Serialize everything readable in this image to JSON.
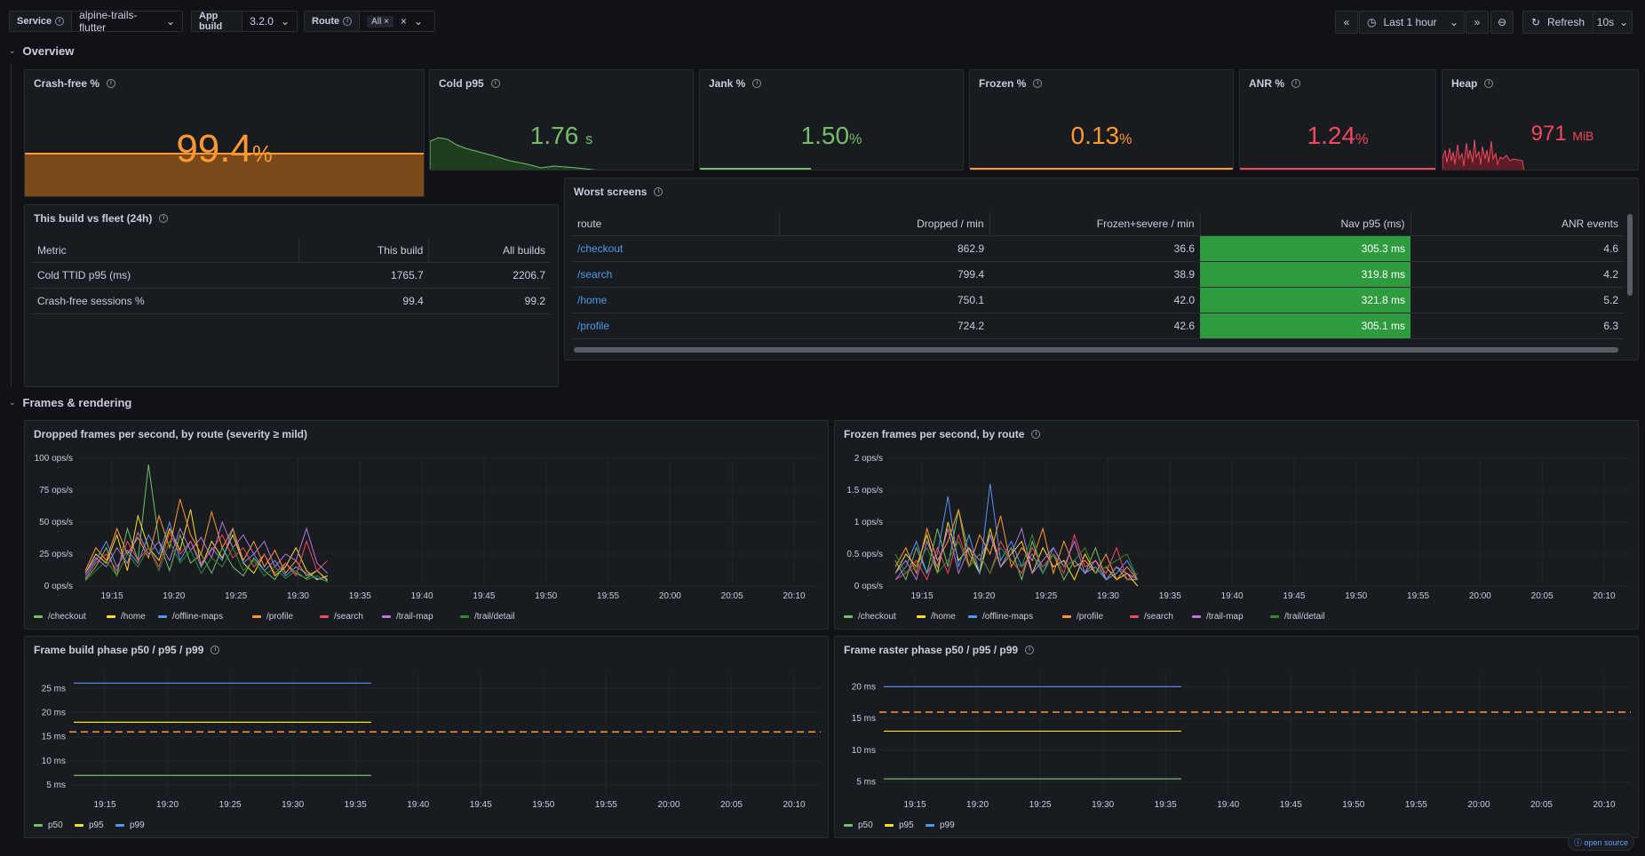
{
  "vars": {
    "service": {
      "label": "Service",
      "value": "alpine-trails-flutter"
    },
    "app_build": {
      "label": "App build",
      "value": "3.2.0"
    },
    "route": {
      "label": "Route",
      "value": "All"
    }
  },
  "timepicker": {
    "range": "Last 1 hour",
    "refresh": "Refresh",
    "interval": "10s"
  },
  "rows": {
    "overview": "Overview",
    "frames": "Frames & rendering"
  },
  "stats": [
    {
      "title": "Crash-free %",
      "value": "99.4",
      "unit": "%",
      "color": "#ff9830"
    },
    {
      "title": "Cold p95",
      "value": "1.76",
      "unit": "s",
      "color": "#73bf69"
    },
    {
      "title": "Jank %",
      "value": "1.50",
      "unit": "%",
      "color": "#73bf69"
    },
    {
      "title": "Frozen %",
      "value": "0.13",
      "unit": "%",
      "color": "#ff9830"
    },
    {
      "title": "ANR %",
      "value": "1.24",
      "unit": "%",
      "color": "#f2495c"
    },
    {
      "title": "Heap",
      "value": "971",
      "unit": "MiB",
      "color": "#f2495c"
    }
  ],
  "fleet": {
    "title": "This build vs fleet (24h)",
    "headers": [
      "Metric",
      "This build",
      "All builds"
    ],
    "rows": [
      [
        "Cold TTID p95 (ms)",
        "1765.7",
        "2206.7"
      ],
      [
        "Crash-free sessions %",
        "99.4",
        "99.2"
      ]
    ]
  },
  "worst": {
    "title": "Worst screens",
    "headers": [
      "route",
      "Dropped / min",
      "Frozen+severe / min",
      "Nav p95 (ms)",
      "ANR events"
    ],
    "rows": [
      [
        "/checkout",
        "862.9",
        "36.6",
        "305.3 ms",
        "4.6"
      ],
      [
        "/search",
        "799.4",
        "38.9",
        "319.8 ms",
        "4.2"
      ],
      [
        "/home",
        "750.1",
        "42.0",
        "321.8 ms",
        "5.2"
      ],
      [
        "/profile",
        "724.2",
        "42.6",
        "305.1 ms",
        "6.3"
      ]
    ]
  },
  "chart_data": [
    {
      "type": "line",
      "title": "Dropped frames per second, by route (severity ≥ mild)",
      "y_ticks": [
        "0 ops/s",
        "25 ops/s",
        "50 ops/s",
        "75 ops/s",
        "100 ops/s"
      ],
      "ylim": [
        0,
        100
      ],
      "x_ticks": [
        "19:15",
        "19:20",
        "19:25",
        "19:30",
        "19:35",
        "19:40",
        "19:45",
        "19:50",
        "19:55",
        "20:00",
        "20:05",
        "20:10"
      ],
      "series": [
        {
          "name": "/checkout",
          "color": "#73bf69",
          "values": [
            5,
            15,
            30,
            8,
            45,
            20,
            95,
            35,
            12,
            40,
            18,
            25,
            10,
            30,
            15,
            8,
            22,
            12,
            5,
            18,
            10,
            6,
            12,
            4
          ]
        },
        {
          "name": "/home",
          "color": "#fade2a",
          "values": [
            10,
            25,
            18,
            40,
            12,
            55,
            30,
            20,
            45,
            28,
            60,
            15,
            35,
            22,
            40,
            18,
            10,
            25,
            8,
            15,
            30,
            12,
            5,
            8
          ]
        },
        {
          "name": "/offline-maps",
          "color": "#5794f2",
          "values": [
            8,
            20,
            35,
            15,
            28,
            18,
            40,
            25,
            50,
            20,
            35,
            15,
            30,
            20,
            45,
            18,
            25,
            12,
            20,
            8,
            15,
            10,
            6,
            4
          ]
        },
        {
          "name": "/profile",
          "color": "#ff9830",
          "values": [
            12,
            30,
            20,
            45,
            25,
            38,
            22,
            55,
            30,
            68,
            40,
            25,
            58,
            30,
            45,
            20,
            35,
            15,
            28,
            10,
            20,
            8,
            12,
            5
          ]
        },
        {
          "name": "/search",
          "color": "#f2495c",
          "values": [
            6,
            18,
            25,
            12,
            35,
            20,
            30,
            15,
            42,
            25,
            35,
            18,
            28,
            40,
            22,
            30,
            15,
            25,
            10,
            18,
            8,
            35,
            12,
            20
          ]
        },
        {
          "name": "/trail-map",
          "color": "#b877d9",
          "values": [
            10,
            22,
            15,
            30,
            18,
            42,
            25,
            35,
            20,
            45,
            28,
            38,
            22,
            50,
            30,
            40,
            25,
            35,
            15,
            25,
            20,
            45,
            18,
            10
          ]
        },
        {
          "name": "/trail/detail",
          "color": "#37872d",
          "values": [
            4,
            12,
            20,
            8,
            25,
            15,
            30,
            12,
            35,
            18,
            28,
            10,
            22,
            15,
            30,
            12,
            20,
            8,
            15,
            6,
            12,
            5,
            8,
            3
          ]
        }
      ]
    },
    {
      "type": "line",
      "title": "Frozen frames per second, by route",
      "y_ticks": [
        "0 ops/s",
        "0.5 ops/s",
        "1 ops/s",
        "1.5 ops/s",
        "2 ops/s"
      ],
      "ylim": [
        0,
        2
      ],
      "x_ticks": [
        "19:15",
        "19:20",
        "19:25",
        "19:30",
        "19:35",
        "19:40",
        "19:45",
        "19:50",
        "19:55",
        "20:00",
        "20:05",
        "20:10"
      ],
      "series": [
        {
          "name": "/checkout",
          "color": "#73bf69",
          "values": [
            0.4,
            0.1,
            0.6,
            0.2,
            0.9,
            0.3,
            1.2,
            0.5,
            0.2,
            0.8,
            0.3,
            0.6,
            0.1,
            0.7,
            0.2,
            0.5,
            0.1,
            0.4,
            0.2,
            0.6,
            0.1,
            0.3,
            0.1,
            0.1
          ]
        },
        {
          "name": "/home",
          "color": "#fade2a",
          "values": [
            0.2,
            0.5,
            0.3,
            0.8,
            0.2,
            1.0,
            0.4,
            0.6,
            0.2,
            0.9,
            0.3,
            0.5,
            0.7,
            0.2,
            0.6,
            0.3,
            0.4,
            0.1,
            0.5,
            0.2,
            0.3,
            0.1,
            0.2,
            0.0
          ]
        },
        {
          "name": "/offline-maps",
          "color": "#5794f2",
          "values": [
            0.1,
            0.3,
            0.7,
            0.2,
            0.5,
            1.4,
            0.3,
            0.8,
            0.2,
            1.6,
            0.4,
            0.7,
            0.3,
            0.5,
            0.2,
            0.6,
            0.3,
            0.4,
            0.2,
            0.3,
            0.1,
            0.2,
            0.4,
            0.1
          ]
        },
        {
          "name": "/profile",
          "color": "#ff9830",
          "values": [
            0.3,
            0.6,
            0.2,
            0.9,
            0.4,
            0.7,
            1.2,
            0.3,
            0.8,
            0.5,
            1.1,
            0.3,
            0.6,
            0.4,
            0.9,
            0.2,
            0.7,
            0.3,
            0.4,
            0.2,
            0.5,
            0.1,
            0.3,
            0.1
          ]
        },
        {
          "name": "/search",
          "color": "#f2495c",
          "values": [
            0.1,
            0.2,
            0.4,
            0.1,
            0.6,
            0.2,
            0.8,
            0.3,
            0.5,
            0.2,
            0.7,
            0.4,
            0.2,
            0.6,
            0.3,
            0.5,
            0.2,
            0.8,
            0.3,
            0.4,
            0.2,
            0.6,
            0.1,
            0.2
          ]
        },
        {
          "name": "/trail-map",
          "color": "#b877d9",
          "values": [
            0.2,
            0.4,
            0.1,
            0.7,
            0.3,
            0.9,
            0.2,
            0.6,
            0.4,
            0.8,
            0.3,
            0.5,
            0.9,
            0.2,
            0.4,
            0.6,
            0.3,
            0.7,
            0.2,
            0.4,
            0.1,
            0.3,
            0.2,
            0.1
          ]
        },
        {
          "name": "/trail/detail",
          "color": "#37872d",
          "values": [
            0.5,
            0.2,
            0.3,
            0.6,
            0.2,
            0.4,
            0.7,
            0.3,
            0.5,
            0.2,
            0.6,
            0.4,
            0.3,
            0.8,
            0.2,
            0.5,
            0.3,
            0.4,
            0.6,
            0.2,
            0.3,
            0.4,
            0.5,
            0.1
          ]
        }
      ]
    },
    {
      "type": "line",
      "title": "Frame build phase p50 / p95 / p99",
      "y_ticks": [
        "5 ms",
        "10 ms",
        "15 ms",
        "20 ms",
        "25 ms"
      ],
      "ylim": [
        3,
        28
      ],
      "threshold": 16,
      "x_ticks": [
        "19:15",
        "19:20",
        "19:25",
        "19:30",
        "19:35",
        "19:40",
        "19:45",
        "19:50",
        "19:55",
        "20:00",
        "20:05",
        "20:10"
      ],
      "series": [
        {
          "name": "p50",
          "color": "#73bf69",
          "value": 7
        },
        {
          "name": "p95",
          "color": "#fade2a",
          "value": 18
        },
        {
          "name": "p99",
          "color": "#5794f2",
          "value": 26.1
        }
      ]
    },
    {
      "type": "line",
      "title": "Frame raster phase p50 / p95 / p99",
      "y_ticks": [
        "5 ms",
        "10 ms",
        "15 ms",
        "20 ms"
      ],
      "ylim": [
        3,
        22
      ],
      "threshold": 16,
      "x_ticks": [
        "19:15",
        "19:20",
        "19:25",
        "19:30",
        "19:35",
        "19:40",
        "19:45",
        "19:50",
        "19:55",
        "20:00",
        "20:05",
        "20:10"
      ],
      "series": [
        {
          "name": "p50",
          "color": "#73bf69",
          "value": 5.5
        },
        {
          "name": "p95",
          "color": "#fade2a",
          "value": 13
        },
        {
          "name": "p99",
          "color": "#5794f2",
          "value": 20
        }
      ]
    }
  ],
  "badge": "open source"
}
